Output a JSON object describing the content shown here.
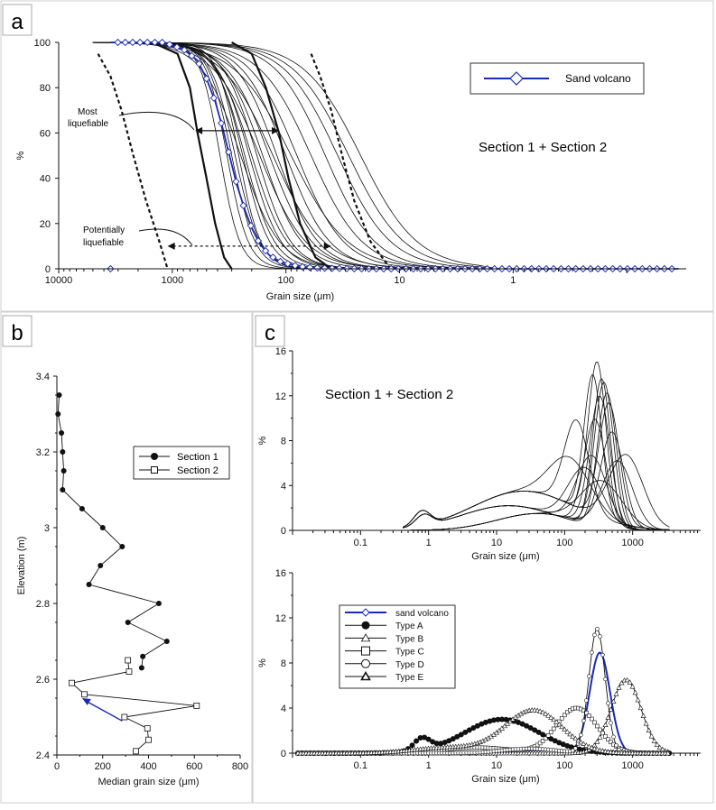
{
  "panels": {
    "a": {
      "letter": "a"
    },
    "b": {
      "letter": "b"
    },
    "c": {
      "letter": "c"
    }
  },
  "chart_data": [
    {
      "id": "a",
      "type": "line",
      "title": "Section 1 + Section 2",
      "xlabel": "Grain size (μm)",
      "ylabel": "%",
      "xscale": "log-reversed",
      "xlim": [
        10000,
        0.03
      ],
      "ylim": [
        0,
        100
      ],
      "xticks": [
        10000,
        1000,
        100,
        10,
        1
      ],
      "xtick_labels": [
        "10000",
        "1000",
        "100",
        "10",
        "1"
      ],
      "yticks": [
        0,
        20,
        40,
        60,
        80,
        100
      ],
      "legend": {
        "entries": [
          "Sand volcano"
        ],
        "placement": "top-right"
      },
      "annotations": [
        {
          "text": "Most liquefiable",
          "range": [
            630,
            115
          ],
          "at_percent": 61
        },
        {
          "text": "Potentially liquefiable",
          "range": [
            1100,
            40
          ],
          "at_percent": 10
        }
      ],
      "sand_volcano_curve": {
        "x": [
          3500,
          1200,
          800,
          600,
          500,
          420,
          360,
          310,
          270,
          230,
          200,
          170,
          140,
          110,
          80,
          60,
          50,
          40,
          30,
          20,
          10,
          5,
          2,
          1,
          0.5,
          0.2,
          0.1,
          0.05,
          0.035
        ],
        "y": [
          100,
          100,
          97,
          92,
          84,
          74,
          62,
          49,
          37,
          26,
          18,
          11,
          6,
          3,
          1.2,
          0.5,
          0.3,
          0.2,
          0.1,
          0,
          0,
          0,
          0,
          0,
          0,
          0,
          0,
          0,
          0
        ]
      },
      "most_liquefiable_bounds": {
        "coarse": {
          "x": [
            1500,
            900,
            700,
            600,
            500,
            420,
            350,
            300
          ],
          "y": [
            100,
            95,
            80,
            60,
            40,
            20,
            5,
            0
          ]
        },
        "fine": {
          "x": [
            300,
            200,
            150,
            115,
            95,
            75,
            55,
            40
          ],
          "y": [
            100,
            95,
            80,
            60,
            40,
            20,
            5,
            0
          ]
        }
      },
      "potentially_liquefiable_bounds": {
        "coarse": {
          "x": [
            4500,
            3500,
            2800,
            2200,
            1700,
            1300,
            1100
          ],
          "y": [
            95,
            85,
            70,
            50,
            30,
            12,
            0
          ]
        },
        "fine": {
          "x": [
            60,
            50,
            40,
            32,
            25,
            18,
            12
          ],
          "y": [
            95,
            85,
            70,
            50,
            30,
            12,
            0
          ]
        }
      }
    },
    {
      "id": "b",
      "type": "scatter",
      "xlabel": "Median grain size (μm)",
      "ylabel": "Elevation (m)",
      "xlim": [
        0,
        800
      ],
      "ylim": [
        2.4,
        3.4
      ],
      "xticks": [
        0,
        200,
        400,
        600,
        800
      ],
      "yticks": [
        2.4,
        2.6,
        2.8,
        3.0,
        3.2,
        3.4
      ],
      "ytick_labels": [
        "2.4",
        "2.6",
        "2.8",
        "3",
        "3.2",
        "3.4"
      ],
      "legend": {
        "entries": [
          "Section 1",
          "Section 2"
        ],
        "placement": "top-right"
      },
      "series": [
        {
          "name": "Section 1",
          "x": [
            10,
            5,
            20,
            25,
            30,
            25,
            110,
            200,
            285,
            190,
            140,
            445,
            310,
            480,
            375,
            370
          ],
          "y": [
            3.35,
            3.3,
            3.25,
            3.2,
            3.15,
            3.1,
            3.05,
            3.0,
            2.95,
            2.9,
            2.85,
            2.8,
            2.75,
            2.7,
            2.66,
            2.63
          ]
        },
        {
          "name": "Section 2",
          "x": [
            310,
            315,
            65,
            120,
            610,
            295,
            395,
            400,
            345
          ],
          "y": [
            2.65,
            2.62,
            2.59,
            2.56,
            2.53,
            2.5,
            2.47,
            2.44,
            2.41
          ]
        }
      ],
      "arrow": {
        "from": [
          285,
          2.49
        ],
        "to": [
          110,
          2.55
        ]
      }
    },
    {
      "id": "c-top",
      "type": "line",
      "title": "Section 1 + Section 2",
      "xlabel": "Grain size (μm)",
      "ylabel": "%",
      "xscale": "log",
      "xlim": [
        0.01,
        10000
      ],
      "ylim": [
        0,
        16
      ],
      "xticks": [
        0.1,
        1,
        10,
        100,
        1000
      ],
      "xtick_labels": [
        "0.1",
        "1",
        "10",
        "100",
        "1000"
      ],
      "yticks": [
        0,
        4,
        8,
        12,
        16
      ],
      "note": "Bundle of individual sample distributions, peaks between ~150 and ~800 μm, peak values 6–14 %."
    },
    {
      "id": "c-bottom",
      "type": "line",
      "xlabel": "Grain size (μm)",
      "ylabel": "%",
      "xscale": "log",
      "xlim": [
        0.01,
        10000
      ],
      "ylim": [
        0,
        16
      ],
      "xticks": [
        0.1,
        1,
        10,
        100,
        1000
      ],
      "xtick_labels": [
        "0.1",
        "1",
        "10",
        "100",
        "1000"
      ],
      "yticks": [
        0,
        4,
        8,
        12,
        16
      ],
      "legend": {
        "entries": [
          "sand volcano",
          "Type A",
          "Type B",
          "Type C",
          "Type D",
          "Type E"
        ],
        "placement": "middle-left"
      },
      "series": [
        {
          "name": "sand volcano",
          "peak_x": 330,
          "peak_y": 8.9
        },
        {
          "name": "Type A",
          "peak_x": 12,
          "peak_y": 3.0
        },
        {
          "name": "Type B",
          "peak_x": 800,
          "peak_y": 6.5
        },
        {
          "name": "Type C",
          "peak_x": 150,
          "peak_y": 4.0
        },
        {
          "name": "Type D",
          "peak_x": 300,
          "peak_y": 11.0
        },
        {
          "name": "Type E",
          "peak_x": 35,
          "peak_y": 3.8
        }
      ]
    }
  ],
  "colors": {
    "sand_volcano": "#1a2ab8",
    "ink": "#111111",
    "frame": "#cccccc"
  }
}
